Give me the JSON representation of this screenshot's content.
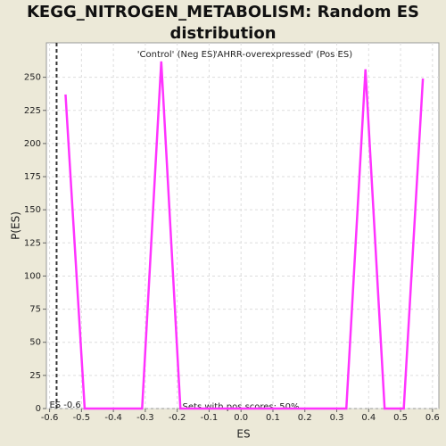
{
  "chart_data": {
    "type": "line",
    "title": "KEGG_NITROGEN_METABOLISM: Random ES distribution",
    "x_label": "ES",
    "y_label": "P(ES)",
    "legend": [
      {
        "name": "'Control' (Neg ES)",
        "color": "#2222cc"
      },
      {
        "name": "'AHRR-overexpressed' (Pos ES)",
        "color": "#dd2222"
      }
    ],
    "annotation": "Sets with pos scores: 50%",
    "observed_es": {
      "value": -0.578,
      "label": "ES -0.6"
    },
    "series": [
      {
        "color": "#ff33ff",
        "x": [
          -0.55,
          -0.49,
          -0.31,
          -0.25,
          -0.19,
          0.33,
          0.39,
          0.45,
          0.51,
          0.57
        ],
        "values": [
          237,
          0,
          0,
          262,
          0,
          0,
          256,
          0,
          0,
          249
        ]
      }
    ],
    "xlim": [
      -0.61,
      0.62
    ],
    "ylim": [
      0,
      276
    ],
    "xticks": [
      -0.6,
      -0.5,
      -0.4,
      -0.3,
      -0.2,
      -0.1,
      {
        "value": 0,
        "label": "0.0"
      },
      0.1,
      0.2,
      0.3,
      0.4,
      0.5,
      0.6
    ],
    "yticks": [
      0,
      25,
      50,
      75,
      100,
      125,
      150,
      175,
      200,
      225,
      250
    ],
    "grid": true
  }
}
